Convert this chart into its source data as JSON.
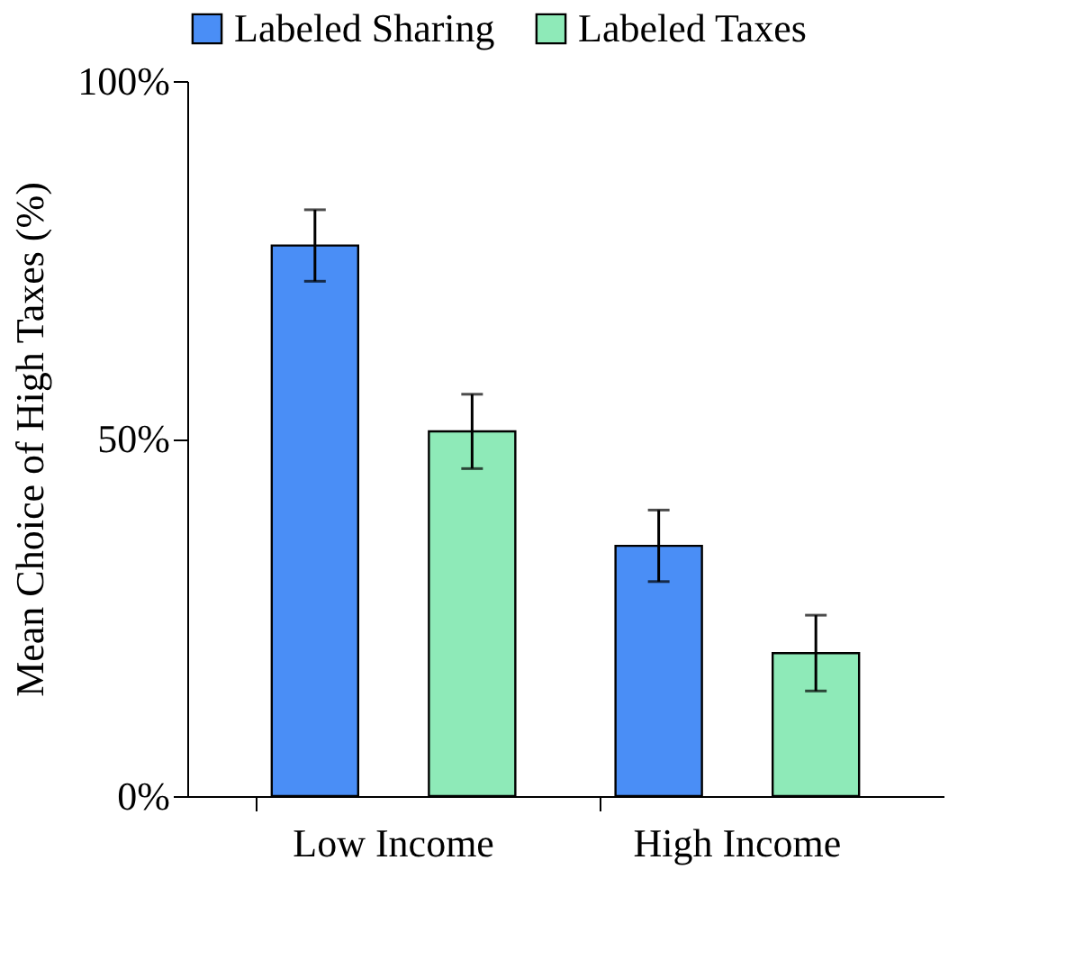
{
  "chart_data": {
    "type": "bar",
    "ylabel": "Mean Choice of High Taxes (%)",
    "categories": [
      "Low Income",
      "High Income"
    ],
    "series": [
      {
        "name": "Labeled Sharing",
        "color": "#4a8ef6",
        "values": [
          77,
          35
        ],
        "errors": [
          5,
          5
        ]
      },
      {
        "name": "Labeled Taxes",
        "color": "#8eeab8",
        "values": [
          51,
          20
        ],
        "errors": [
          5.2,
          5.3
        ]
      }
    ],
    "ylim": [
      0,
      100
    ],
    "yticks": [
      {
        "value": 0,
        "label": "0%"
      },
      {
        "value": 50,
        "label": "50%"
      },
      {
        "value": 100,
        "label": "100%"
      }
    ],
    "grid": false,
    "legend": "top"
  }
}
